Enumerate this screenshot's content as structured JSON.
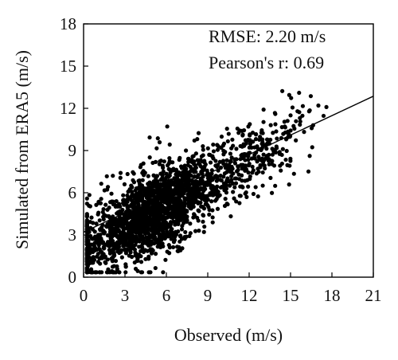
{
  "chart_data": {
    "type": "scatter",
    "title": "",
    "xlabel": "Observed (m/s)",
    "ylabel": "Simulated from ERA5 (m/s)",
    "xlim": [
      0,
      21
    ],
    "ylim": [
      0,
      18
    ],
    "xticks": [
      0,
      3,
      6,
      9,
      12,
      15,
      18,
      21
    ],
    "yticks": [
      0,
      3,
      6,
      9,
      12,
      15,
      18
    ],
    "grid": false,
    "annotations": {
      "rmse": "RMSE: 2.20 m/s",
      "pearson": "Pearson's r: 0.69"
    },
    "fit_line": {
      "intercept": 3.2,
      "slope": 0.46
    },
    "point_count": 2200,
    "colors": {
      "points": "#000000",
      "axes": "#000000",
      "background": "#ffffff"
    }
  }
}
